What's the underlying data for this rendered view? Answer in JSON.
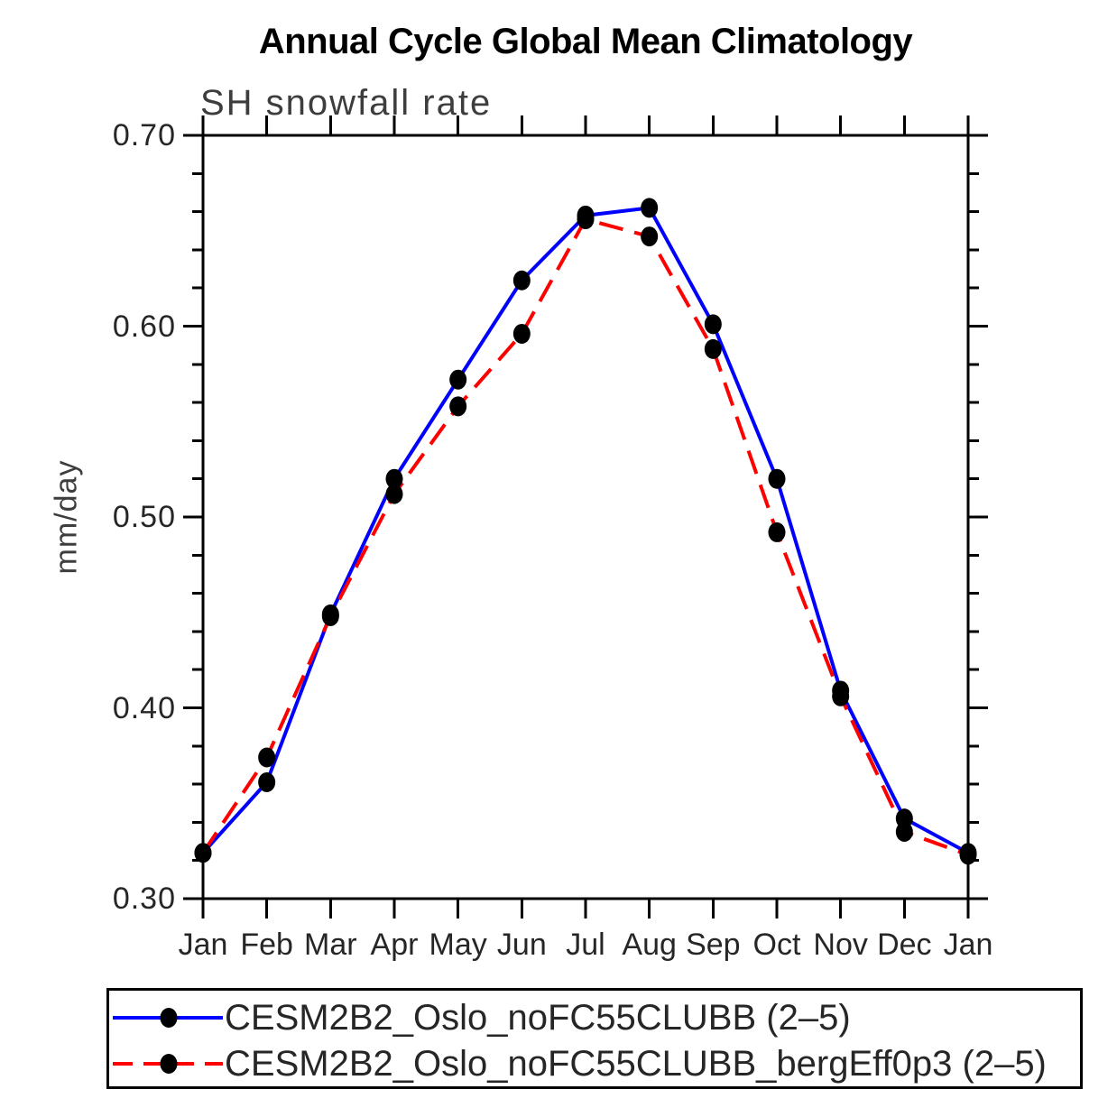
{
  "chart": {
    "title": "Annual Cycle Global Mean Climatology",
    "subtitle": "SH snowfall rate",
    "ylabel": "mm/day",
    "colors": {
      "axis": "#000000",
      "marker": "#000000",
      "series1": "#0000ff",
      "series2": "#ff0000"
    }
  },
  "chart_data": {
    "type": "line",
    "title": "Annual Cycle Global Mean Climatology",
    "subtitle": "SH snowfall rate",
    "xlabel": "",
    "ylabel": "mm/day",
    "x_categories": [
      "Jan",
      "Feb",
      "Mar",
      "Apr",
      "May",
      "Jun",
      "Jul",
      "Aug",
      "Sep",
      "Oct",
      "Nov",
      "Dec",
      "Jan"
    ],
    "y_tick_labels": [
      "0.30",
      "0.40",
      "0.50",
      "0.60",
      "0.70"
    ],
    "y_major_ticks": [
      0.3,
      0.4,
      0.5,
      0.6,
      0.7
    ],
    "y_minor_step": 0.02,
    "ylim": [
      0.3,
      0.7
    ],
    "grid": false,
    "legend_position": "bottom",
    "series": [
      {
        "name": "CESM2B2_Oslo_noFC55CLUBB (2–5)",
        "color": "#0000ff",
        "line_style": "solid",
        "marker": "filled-circle",
        "marker_color": "#000000",
        "values": [
          0.324,
          0.361,
          0.449,
          0.52,
          0.572,
          0.624,
          0.658,
          0.662,
          0.601,
          0.52,
          0.409,
          0.342,
          0.324
        ]
      },
      {
        "name": "CESM2B2_Oslo_noFC55CLUBB_bergEff0p3 (2–5)",
        "color": "#ff0000",
        "line_style": "dashed",
        "marker": "filled-circle",
        "marker_color": "#000000",
        "values": [
          0.324,
          0.374,
          0.448,
          0.512,
          0.558,
          0.596,
          0.656,
          0.647,
          0.588,
          0.492,
          0.406,
          0.335,
          0.323
        ]
      }
    ]
  }
}
